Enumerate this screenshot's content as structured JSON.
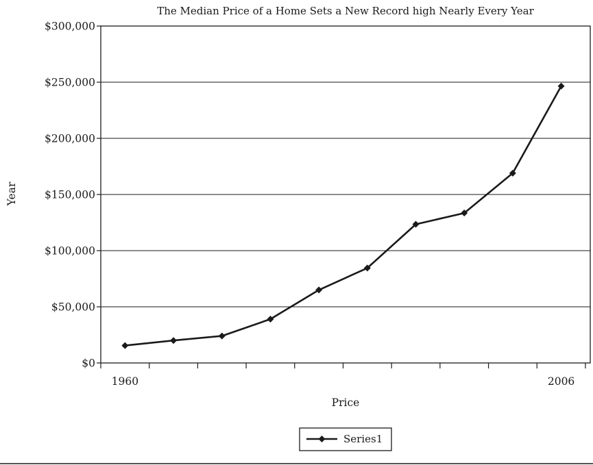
{
  "chart_data": {
    "type": "line",
    "title": "The Median Price of a Home Sets a New Record high Nearly Every Year",
    "xlabel": "Price",
    "ylabel": "Year",
    "x_tick_labels": [
      {
        "index": 0,
        "label": "1960"
      },
      {
        "index": 9,
        "label": "2006"
      }
    ],
    "categories": [
      "1960",
      "",
      "",
      "",
      "",
      "",
      "",
      "",
      "",
      "2006"
    ],
    "ylim": [
      0,
      300000
    ],
    "y_ticks": [
      {
        "value": 0,
        "label": "$0"
      },
      {
        "value": 50000,
        "label": "$50,000"
      },
      {
        "value": 100000,
        "label": "$100,000"
      },
      {
        "value": 150000,
        "label": "$150,000"
      },
      {
        "value": 200000,
        "label": "$200,000"
      },
      {
        "value": 250000,
        "label": "$250,000"
      },
      {
        "value": 300000,
        "label": "$300,000"
      }
    ],
    "grid": true,
    "legend_position": "bottom",
    "series": [
      {
        "name": "Series1",
        "values": [
          15500,
          20000,
          24000,
          39000,
          65000,
          84500,
          123500,
          133500,
          169000,
          246500
        ]
      }
    ]
  }
}
